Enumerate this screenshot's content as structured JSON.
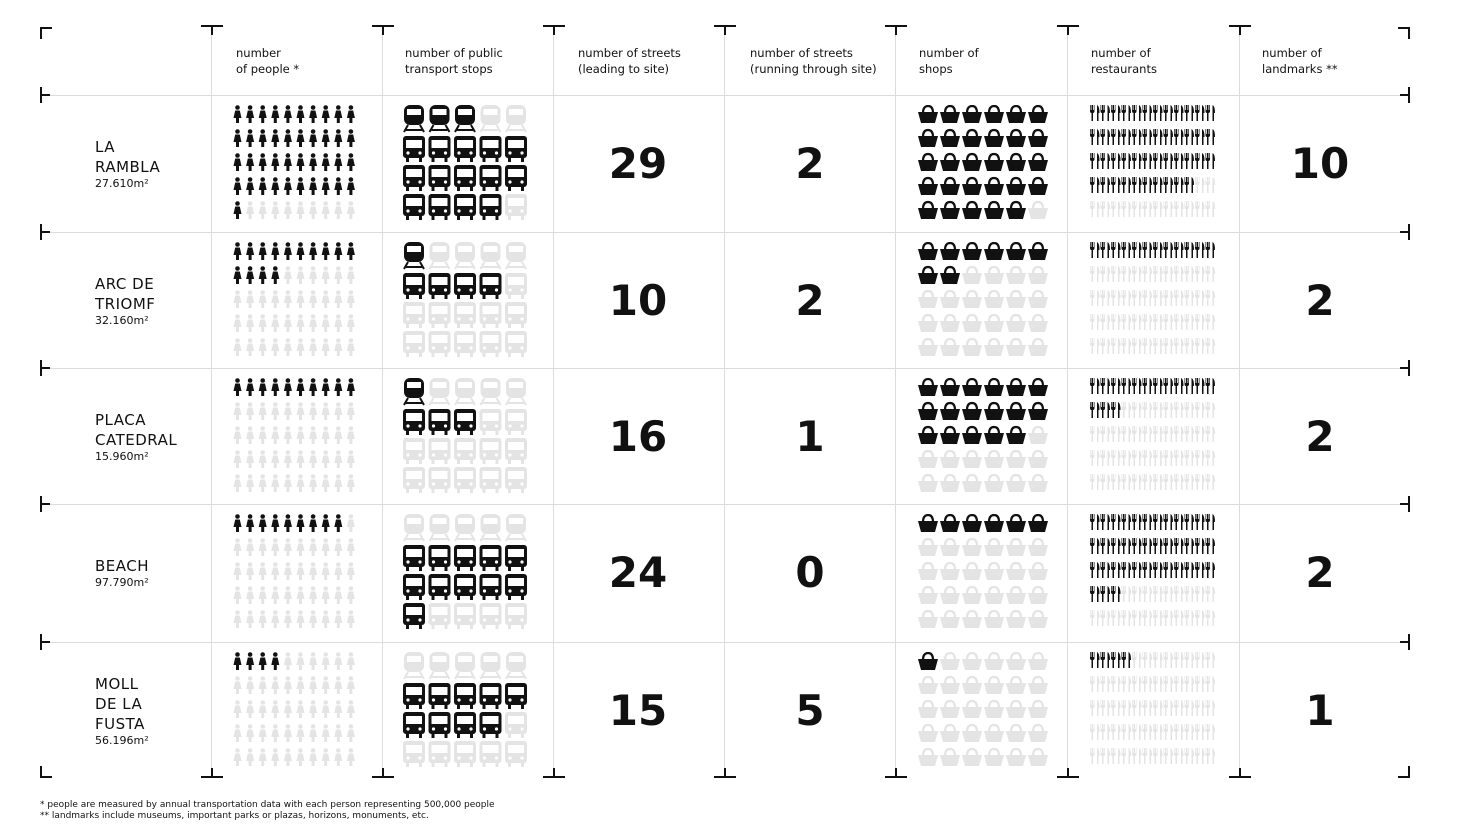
{
  "headers": {
    "site": "",
    "people": [
      "number",
      "of people *"
    ],
    "transport": [
      "number of public",
      "transport stops"
    ],
    "streets_leading": [
      "number of streets",
      "(leading to site)"
    ],
    "streets_through": [
      "number of streets",
      "(running through site)"
    ],
    "shops": [
      "number of",
      "shops"
    ],
    "restaurants": [
      "number of",
      "restaurants"
    ],
    "landmarks": [
      "number of",
      "landmarks **"
    ]
  },
  "chart_data": {
    "type": "table",
    "rows": [
      {
        "site": "LA\nRAMBLA",
        "area": "27.610m²",
        "people": 41,
        "trains": 3,
        "buses": 14,
        "streets_leading": "29",
        "streets_through": "2",
        "shops": 29,
        "restaurants": 46,
        "landmarks": "10"
      },
      {
        "site": "ARC DE\nTRIOMF",
        "area": "32.160m²",
        "people": 14,
        "trains": 1,
        "buses": 4,
        "streets_leading": "10",
        "streets_through": "2",
        "shops": 8,
        "restaurants": 12,
        "landmarks": "2"
      },
      {
        "site": "PLACA\nCATEDRAL",
        "area": "15.960m²",
        "people": 10,
        "trains": 1,
        "buses": 3,
        "streets_leading": "16",
        "streets_through": "1",
        "shops": 17,
        "restaurants": 15,
        "landmarks": "2"
      },
      {
        "site": "BEACH",
        "area": "97.790m²",
        "people": 9,
        "trains": 0,
        "buses": 11,
        "streets_leading": "24",
        "streets_through": "0",
        "shops": 6,
        "restaurants": 39,
        "landmarks": "2"
      },
      {
        "site": "MOLL\nDE LA\nFUSTA",
        "area": "56.196m²",
        "people": 4,
        "trains": 0,
        "buses": 9,
        "streets_leading": "15",
        "streets_through": "5",
        "shops": 1,
        "restaurants": 4,
        "landmarks": "1"
      }
    ],
    "colors": {
      "filled": "#111111",
      "empty": "#e4e4e4"
    }
  },
  "footnotes": [
    "* people are measured by annual transportation data with each person representing 500,000 people",
    "** landmarks include museums, important parks or plazas, horizons, monuments, etc."
  ]
}
